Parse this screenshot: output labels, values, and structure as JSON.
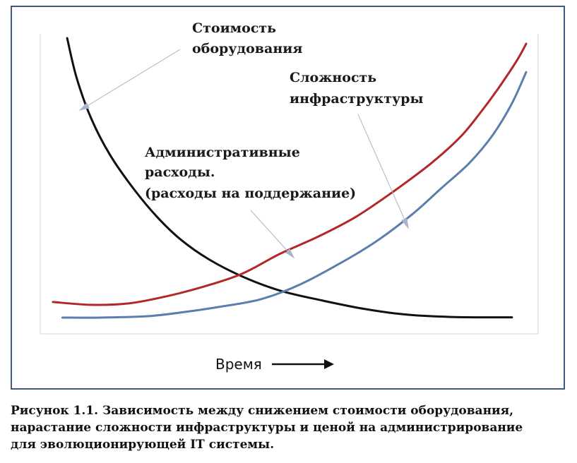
{
  "chart_data": {
    "type": "line",
    "xlabel": "Время",
    "ylabel": "",
    "annotations": {
      "hardware_cost": [
        "Стоимость",
        "оборудования"
      ],
      "infra_complexity": [
        "Сложность",
        "инфраструктуры"
      ],
      "admin_costs": [
        "Административные",
        "расходы.",
        "(расходы на поддержание)"
      ]
    },
    "xlim": [
      0,
      100
    ],
    "ylim": [
      0,
      100
    ],
    "series": [
      {
        "key": "hardware_cost",
        "color": "#111111",
        "x": [
          3,
          5,
          8,
          12,
          17,
          22,
          27,
          33,
          40,
          48,
          57,
          66,
          75,
          85,
          97
        ],
        "y": [
          100,
          86,
          72,
          59,
          47,
          37,
          29,
          22,
          16,
          11,
          7.5,
          4.5,
          2.5,
          1.7,
          1.6
        ]
      },
      {
        "key": "admin_costs",
        "color": "#b22727",
        "x": [
          0,
          8,
          16,
          24,
          32,
          40,
          48,
          56,
          64,
          72,
          80,
          86,
          90,
          94,
          98,
          100
        ],
        "y": [
          7,
          6,
          6.5,
          9,
          12.5,
          17,
          24,
          30,
          37,
          46,
          56,
          65,
          73,
          82,
          92,
          98
        ]
      },
      {
        "key": "infra_complexity",
        "color": "#5b7fad",
        "x": [
          2,
          10,
          20,
          28,
          36,
          44,
          52,
          60,
          68,
          76,
          82,
          88,
          93,
          97,
          100
        ],
        "y": [
          1.5,
          1.5,
          2,
          3.5,
          5.5,
          8,
          13,
          20,
          28,
          38,
          47,
          56,
          66,
          77,
          88
        ]
      }
    ]
  },
  "caption": "Рисунок 1.1. Зависимость между снижением стоимости оборудования,\nнарастание сложности инфраструктуры и ценой на администрирование\nдля эволюционирующей IT системы."
}
